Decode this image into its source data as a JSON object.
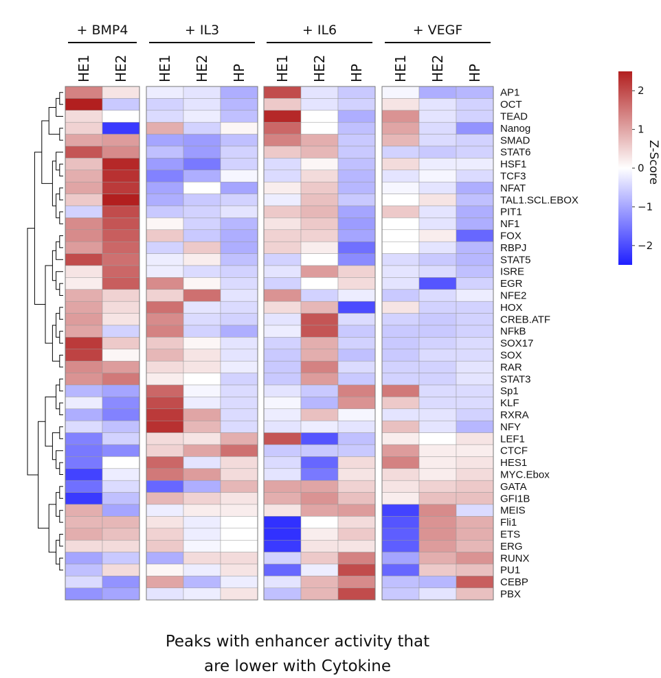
{
  "chart_data": {
    "type": "heatmap",
    "groups": [
      {
        "name": "+ BMP4",
        "columns": [
          "HE1",
          "HE2"
        ]
      },
      {
        "name": "+ IL3",
        "columns": [
          "HE1",
          "HE2",
          "HP"
        ]
      },
      {
        "name": "+ IL6",
        "columns": [
          "HE1",
          "HE2",
          "HP"
        ]
      },
      {
        "name": "+ VEGF",
        "columns": [
          "HE1",
          "HE2",
          "HP"
        ]
      }
    ],
    "rows": [
      "AP1",
      "OCT",
      "TEAD",
      "Nanog",
      "SMAD",
      "STAT6",
      "HSF1",
      "TCF3",
      "NFAT",
      "TAL1.SCL.EBOX",
      "PIT1",
      "NF1",
      "FOX",
      "RBPJ",
      "STAT5",
      "ISRE",
      "EGR",
      "NFE2",
      "HOX",
      "CREB.ATF",
      "NFkB",
      "SOX17",
      "SOX",
      "RAR",
      "STAT3",
      "Sp1",
      "KLF",
      "RXRA",
      "NFY",
      "LEF1",
      "CTCF",
      "HES1",
      "MYC.Ebox",
      "GATA",
      "GFI1B",
      "MEIS",
      "Fli1",
      "ETS",
      "ERG",
      "RUNX",
      "PU1",
      "CEBP",
      "PBX"
    ],
    "values": [
      [
        1.4,
        0.3,
        -0.2,
        -0.3,
        -0.9,
        2.0,
        -0.3,
        -0.6,
        -0.1,
        -0.9,
        -0.8
      ],
      [
        2.5,
        -0.6,
        -0.5,
        -0.3,
        -0.8,
        0.6,
        -0.3,
        -0.5,
        0.3,
        -0.3,
        -0.5
      ],
      [
        0.4,
        0.0,
        -0.4,
        -0.2,
        -0.7,
        2.4,
        0.0,
        -0.9,
        1.2,
        -0.3,
        -0.5
      ],
      [
        0.5,
        -2.2,
        0.9,
        -0.5,
        0.1,
        1.7,
        0.0,
        -0.7,
        1.0,
        -0.4,
        -1.2
      ],
      [
        1.0,
        1.1,
        -1.0,
        -1.1,
        -0.7,
        1.4,
        0.9,
        -0.6,
        0.8,
        -0.4,
        -0.5
      ],
      [
        1.9,
        1.3,
        -0.7,
        -1.1,
        -0.5,
        0.6,
        0.8,
        -0.6,
        -0.5,
        -0.6,
        -0.5
      ],
      [
        0.7,
        2.4,
        -1.1,
        -1.5,
        -0.5,
        -0.4,
        0.1,
        -0.7,
        0.4,
        -0.2,
        -0.2
      ],
      [
        0.9,
        2.3,
        -1.4,
        -0.9,
        -0.1,
        -0.4,
        0.4,
        -0.8,
        -0.3,
        -0.1,
        -0.4
      ],
      [
        1.0,
        2.2,
        -1.0,
        0.0,
        -1.0,
        0.2,
        0.6,
        -0.8,
        -0.1,
        -0.3,
        -0.9
      ],
      [
        0.6,
        2.5,
        -0.9,
        -0.6,
        -0.5,
        -0.2,
        0.7,
        -0.6,
        0.0,
        0.3,
        -0.7
      ],
      [
        -0.5,
        2.0,
        -0.6,
        -0.5,
        -0.3,
        0.6,
        0.8,
        -1.0,
        0.6,
        -0.3,
        -0.9
      ],
      [
        1.3,
        1.9,
        0.1,
        -0.5,
        -0.8,
        0.3,
        0.6,
        -1.1,
        0.0,
        -0.3,
        -0.9
      ],
      [
        1.3,
        1.8,
        0.6,
        -0.6,
        -0.9,
        0.5,
        0.5,
        -1.0,
        0.0,
        0.2,
        -1.7
      ],
      [
        1.1,
        1.7,
        -0.5,
        0.6,
        -0.9,
        0.5,
        0.2,
        -1.6,
        0.0,
        -0.3,
        -0.8
      ],
      [
        2.0,
        1.6,
        -0.2,
        0.2,
        -0.7,
        -0.5,
        0.0,
        -1.3,
        -0.4,
        -0.6,
        -0.8
      ],
      [
        0.3,
        1.7,
        -0.2,
        -0.4,
        -0.5,
        -0.3,
        1.1,
        0.5,
        -0.3,
        -0.4,
        -0.7
      ],
      [
        0.2,
        1.8,
        1.3,
        0.1,
        -0.4,
        -0.5,
        0.0,
        0.4,
        -0.3,
        -1.9,
        -0.5
      ],
      [
        0.9,
        0.5,
        0.5,
        1.6,
        -0.3,
        1.2,
        -0.5,
        -0.2,
        -0.6,
        -0.4,
        -0.2
      ],
      [
        1.0,
        0.4,
        1.6,
        -0.3,
        -0.4,
        0.4,
        0.8,
        -2.0,
        0.3,
        -0.5,
        -0.5
      ],
      [
        1.1,
        0.3,
        1.3,
        -0.4,
        -0.5,
        -0.3,
        1.9,
        -0.4,
        -0.5,
        -0.6,
        -0.5
      ],
      [
        1.0,
        -0.5,
        1.4,
        -0.5,
        -0.9,
        -0.2,
        1.9,
        -0.6,
        -0.6,
        -0.6,
        -0.5
      ],
      [
        2.2,
        0.6,
        0.6,
        0.1,
        -0.3,
        -0.5,
        0.9,
        -0.5,
        -0.6,
        -0.5,
        -0.4
      ],
      [
        2.1,
        0.1,
        0.8,
        0.3,
        -0.3,
        -0.6,
        0.9,
        -0.7,
        -0.6,
        -0.4,
        -0.4
      ],
      [
        1.3,
        1.1,
        0.4,
        0.3,
        -0.2,
        -0.6,
        1.4,
        -0.4,
        -0.5,
        -0.5,
        -0.3
      ],
      [
        1.2,
        1.5,
        0.2,
        0.0,
        -0.5,
        -0.6,
        1.1,
        -0.6,
        -0.5,
        -0.5,
        -0.3
      ],
      [
        -0.8,
        -1.0,
        1.7,
        -0.1,
        -0.4,
        -0.3,
        -0.6,
        1.4,
        1.5,
        -0.4,
        -0.4
      ],
      [
        -0.2,
        -1.3,
        2.0,
        -0.2,
        -0.4,
        -0.1,
        -0.8,
        1.2,
        0.6,
        -0.4,
        -0.4
      ],
      [
        -0.9,
        -1.4,
        2.2,
        1.0,
        -0.4,
        -0.2,
        0.7,
        -0.1,
        -0.3,
        -0.3,
        -0.5
      ],
      [
        -0.4,
        -0.7,
        2.3,
        0.8,
        -0.4,
        -0.3,
        -0.2,
        -0.3,
        0.7,
        -0.3,
        -0.8
      ],
      [
        -1.4,
        -0.5,
        0.4,
        0.3,
        0.9,
        1.9,
        -1.9,
        -0.7,
        0.2,
        0.0,
        0.3
      ],
      [
        -1.5,
        -1.3,
        0.5,
        1.0,
        1.6,
        -0.6,
        -0.6,
        -0.6,
        1.1,
        0.2,
        0.2
      ],
      [
        -1.5,
        0.0,
        1.7,
        -0.3,
        0.4,
        -0.4,
        -1.7,
        0.4,
        1.4,
        0.2,
        0.3
      ],
      [
        -2.1,
        -0.2,
        1.5,
        1.1,
        0.4,
        -0.3,
        -1.5,
        0.3,
        0.4,
        0.2,
        0.4
      ],
      [
        -1.6,
        -0.4,
        -1.7,
        -0.9,
        0.8,
        1.0,
        1.0,
        0.5,
        0.3,
        0.5,
        0.6
      ],
      [
        -2.2,
        -0.7,
        0.8,
        0.5,
        0.3,
        0.9,
        1.2,
        0.7,
        0.2,
        0.7,
        0.7
      ],
      [
        0.9,
        -1.0,
        -0.2,
        0.2,
        0.2,
        0.3,
        1.0,
        1.1,
        -2.1,
        1.3,
        -0.4
      ],
      [
        0.8,
        0.8,
        0.3,
        -0.2,
        0.0,
        -2.3,
        0.0,
        0.4,
        -1.9,
        1.2,
        0.9
      ],
      [
        0.9,
        0.7,
        0.5,
        -0.2,
        0.0,
        -2.3,
        0.2,
        0.6,
        -1.8,
        1.2,
        0.9
      ],
      [
        0.4,
        0.4,
        0.6,
        -0.1,
        0.0,
        -2.2,
        0.3,
        0.3,
        -1.8,
        1.1,
        0.8
      ],
      [
        -1.0,
        -0.6,
        -0.9,
        0.4,
        0.4,
        -0.5,
        0.6,
        1.4,
        -1.0,
        0.9,
        1.2
      ],
      [
        -0.7,
        0.4,
        0.1,
        -0.2,
        0.3,
        -1.7,
        -0.2,
        2.0,
        -1.7,
        0.6,
        0.7
      ],
      [
        -0.4,
        -1.2,
        1.0,
        -0.8,
        -0.2,
        -0.3,
        0.8,
        1.3,
        -0.7,
        -0.8,
        1.8
      ],
      [
        -1.2,
        -1.0,
        -0.3,
        -0.2,
        0.3,
        -0.7,
        0.8,
        2.0,
        -0.6,
        -0.3,
        0.7
      ]
    ],
    "color_scale": {
      "low": "#1f1fff",
      "mid": "#ffffff",
      "high": "#b21f1f",
      "range": [
        -2.5,
        2.5
      ]
    },
    "colorbar": {
      "title": "Z-Score",
      "ticks": [
        2,
        1,
        0,
        -1,
        -2
      ],
      "tick_labels": [
        "2",
        "1",
        "0",
        "−1",
        "−2"
      ]
    },
    "caption": [
      "Peaks with enhancer activity that",
      "are lower with Cytokine"
    ]
  }
}
